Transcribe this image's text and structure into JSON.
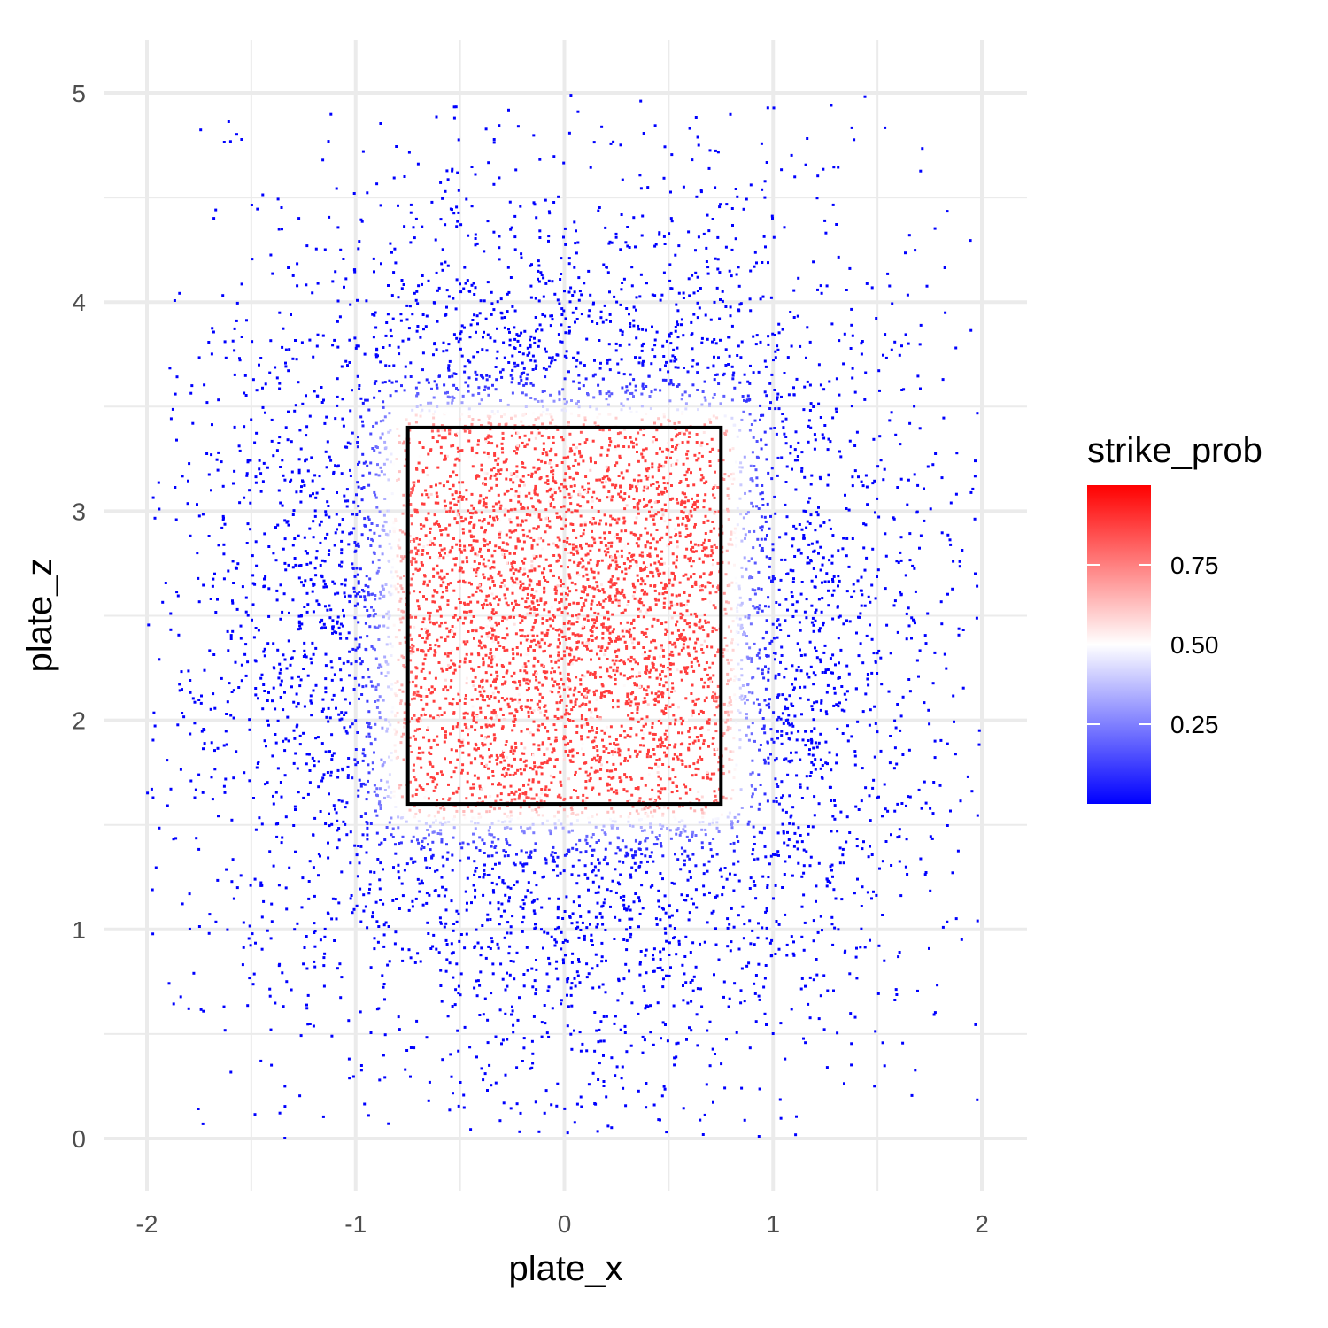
{
  "chart_data": {
    "type": "scatter",
    "title": "",
    "xlabel": "plate_x",
    "ylabel": "plate_z",
    "xlim": [
      -2,
      2
    ],
    "ylim": [
      0,
      5
    ],
    "x_ticks": [
      -2,
      -1,
      0,
      1,
      2
    ],
    "x_tick_labels": [
      "-2",
      "-1",
      "0",
      "1",
      "2"
    ],
    "y_ticks": [
      0,
      1,
      2,
      3,
      4,
      5
    ],
    "y_tick_labels": [
      "0",
      "1",
      "2",
      "3",
      "4",
      "5"
    ],
    "grid": true,
    "color_variable": "strike_prob",
    "point_density_description": "dense cloud of pitch locations; strike probability high inside the zone, falling to near zero outside",
    "strike_zone": {
      "x": [
        -0.75,
        0.75
      ],
      "z": [
        1.6,
        3.4
      ],
      "color": "#000000"
    },
    "legend": {
      "title": "strike_prob",
      "placement": "right",
      "breaks": [
        0.25,
        0.5,
        0.75
      ],
      "break_labels": [
        "0.25",
        "0.50",
        "0.75"
      ],
      "range": [
        0.0,
        1.0
      ],
      "low_color": "#0000ff",
      "mid_color": "#ffffff",
      "high_color": "#ff0000",
      "midpoint": 0.5
    }
  }
}
